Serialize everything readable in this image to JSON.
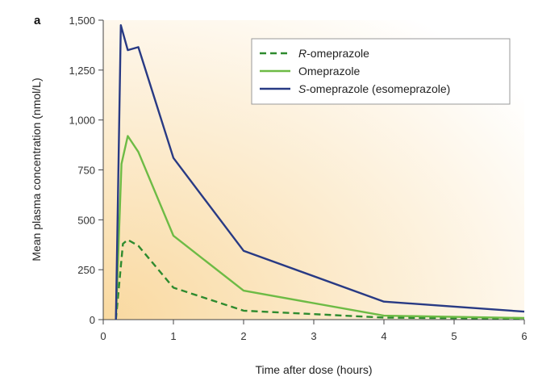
{
  "panel_label": "a",
  "chart_data": {
    "type": "line",
    "title": "",
    "xlabel": "Time after dose (hours)",
    "ylabel": "Mean plasma concentration (nmol/L)",
    "xlim": [
      0,
      6
    ],
    "ylim": [
      0,
      1500
    ],
    "x_ticks": [
      0,
      1,
      2,
      3,
      4,
      5,
      6
    ],
    "x_tick_labels": [
      "0",
      "1",
      "2",
      "3",
      "4",
      "5",
      "6"
    ],
    "y_ticks": [
      0,
      250,
      500,
      750,
      1000,
      1250,
      1500
    ],
    "y_tick_labels": [
      "0",
      "250",
      "500",
      "750",
      "1,000",
      "1,250",
      "1,500"
    ],
    "grid": false,
    "legend_position": "top-right",
    "background_gradient": [
      "#f9d9a0",
      "#ffffff"
    ],
    "series": [
      {
        "key": "r-omeprazole",
        "name_italic": "R",
        "name_rest": "-omeprazole",
        "color": "#2e8b2e",
        "dash": true,
        "x": [
          0.18,
          0.28,
          0.35,
          0.5,
          1.0,
          2.0,
          4.0,
          6.0
        ],
        "y": [
          0,
          380,
          400,
          370,
          160,
          45,
          10,
          5
        ]
      },
      {
        "key": "omeprazole",
        "name_italic": "",
        "name_rest": "Omeprazole",
        "color": "#6dbb45",
        "dash": false,
        "x": [
          0.18,
          0.26,
          0.35,
          0.5,
          1.0,
          2.0,
          4.0,
          6.0
        ],
        "y": [
          0,
          780,
          920,
          840,
          420,
          145,
          20,
          8
        ]
      },
      {
        "key": "s-omeprazole",
        "name_italic": "S",
        "name_rest": "-omeprazole (esomeprazole)",
        "color": "#283a84",
        "dash": false,
        "x": [
          0.18,
          0.25,
          0.35,
          0.5,
          1.0,
          2.0,
          4.0,
          6.0
        ],
        "y": [
          0,
          1475,
          1350,
          1365,
          810,
          345,
          90,
          40
        ]
      }
    ]
  }
}
